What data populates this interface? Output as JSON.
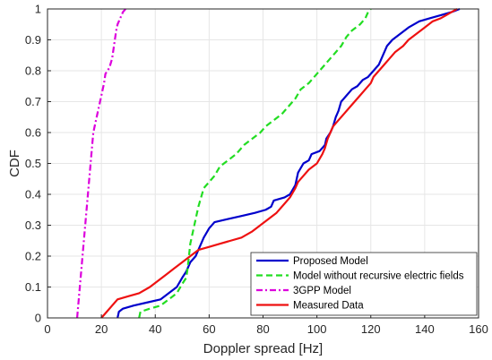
{
  "chart_data": {
    "type": "line",
    "title": "",
    "xlabel": "Doppler spread [Hz]",
    "ylabel": "CDF",
    "xlim": [
      0,
      160
    ],
    "ylim": [
      0,
      1
    ],
    "x_ticks": [
      "0",
      "20",
      "40",
      "60",
      "80",
      "100",
      "120",
      "140",
      "160"
    ],
    "y_ticks": [
      "0",
      "0.1",
      "0.2",
      "0.3",
      "0.4",
      "0.5",
      "0.6",
      "0.7",
      "0.8",
      "0.9",
      "1"
    ],
    "grid": true,
    "legend_position": "bottom-right",
    "series": [
      {
        "name": "Proposed Model",
        "color": "#0000cc",
        "style": "solid",
        "points": [
          [
            26,
            0
          ],
          [
            26.5,
            0.02
          ],
          [
            28,
            0.03
          ],
          [
            32,
            0.04
          ],
          [
            37,
            0.05
          ],
          [
            42,
            0.06
          ],
          [
            45,
            0.08
          ],
          [
            48,
            0.1
          ],
          [
            50,
            0.13
          ],
          [
            51.5,
            0.15
          ],
          [
            53,
            0.18
          ],
          [
            55,
            0.2
          ],
          [
            56,
            0.22
          ],
          [
            57,
            0.24
          ],
          [
            58,
            0.26
          ],
          [
            60,
            0.29
          ],
          [
            62,
            0.31
          ],
          [
            67,
            0.32
          ],
          [
            72,
            0.33
          ],
          [
            77,
            0.34
          ],
          [
            81,
            0.35
          ],
          [
            83,
            0.36
          ],
          [
            84,
            0.38
          ],
          [
            88,
            0.39
          ],
          [
            90,
            0.4
          ],
          [
            92,
            0.43
          ],
          [
            93,
            0.47
          ],
          [
            95,
            0.5
          ],
          [
            97,
            0.51
          ],
          [
            98,
            0.53
          ],
          [
            101,
            0.54
          ],
          [
            103,
            0.56
          ],
          [
            103.5,
            0.58
          ],
          [
            105,
            0.6
          ],
          [
            106,
            0.62
          ],
          [
            107,
            0.65
          ],
          [
            108,
            0.67
          ],
          [
            109,
            0.7
          ],
          [
            111,
            0.72
          ],
          [
            113,
            0.74
          ],
          [
            115,
            0.75
          ],
          [
            117,
            0.77
          ],
          [
            119,
            0.78
          ],
          [
            121,
            0.8
          ],
          [
            123,
            0.82
          ],
          [
            124,
            0.84
          ],
          [
            125,
            0.86
          ],
          [
            126,
            0.88
          ],
          [
            128,
            0.9
          ],
          [
            131,
            0.92
          ],
          [
            134,
            0.94
          ],
          [
            138,
            0.96
          ],
          [
            142,
            0.97
          ],
          [
            146,
            0.98
          ],
          [
            150,
            0.99
          ],
          [
            153,
            1.0
          ]
        ]
      },
      {
        "name": "Model without recursive electric fields",
        "color": "#22dd22",
        "style": "dashed",
        "points": [
          [
            34,
            0
          ],
          [
            34.5,
            0.02
          ],
          [
            38,
            0.03
          ],
          [
            42,
            0.04
          ],
          [
            45,
            0.06
          ],
          [
            48,
            0.08
          ],
          [
            50,
            0.11
          ],
          [
            51.5,
            0.13
          ],
          [
            52,
            0.16
          ],
          [
            52.5,
            0.2
          ],
          [
            53,
            0.24
          ],
          [
            54,
            0.28
          ],
          [
            55,
            0.32
          ],
          [
            56,
            0.36
          ],
          [
            57,
            0.39
          ],
          [
            58,
            0.42
          ],
          [
            60,
            0.44
          ],
          [
            62,
            0.46
          ],
          [
            64,
            0.49
          ],
          [
            67,
            0.51
          ],
          [
            70,
            0.53
          ],
          [
            73,
            0.56
          ],
          [
            76,
            0.58
          ],
          [
            79,
            0.6
          ],
          [
            81,
            0.62
          ],
          [
            84,
            0.64
          ],
          [
            87,
            0.66
          ],
          [
            89,
            0.68
          ],
          [
            92,
            0.71
          ],
          [
            94,
            0.74
          ],
          [
            97,
            0.76
          ],
          [
            100,
            0.79
          ],
          [
            103,
            0.82
          ],
          [
            106,
            0.85
          ],
          [
            109,
            0.88
          ],
          [
            111,
            0.91
          ],
          [
            113,
            0.93
          ],
          [
            116,
            0.95
          ],
          [
            118,
            0.97
          ],
          [
            119,
            0.99
          ],
          [
            120,
            1.0
          ]
        ]
      },
      {
        "name": "3GPP Model",
        "color": "#dd00dd",
        "style": "dashdot",
        "points": [
          [
            11,
            0
          ],
          [
            11.5,
            0.05
          ],
          [
            12,
            0.1
          ],
          [
            12.5,
            0.15
          ],
          [
            13,
            0.2
          ],
          [
            13.5,
            0.25
          ],
          [
            14,
            0.3
          ],
          [
            14.5,
            0.35
          ],
          [
            15,
            0.4
          ],
          [
            15.5,
            0.45
          ],
          [
            16,
            0.5
          ],
          [
            16.5,
            0.55
          ],
          [
            17,
            0.6
          ],
          [
            18,
            0.64
          ],
          [
            19,
            0.68
          ],
          [
            20,
            0.72
          ],
          [
            21,
            0.76
          ],
          [
            21.5,
            0.79
          ],
          [
            23,
            0.81
          ],
          [
            24,
            0.84
          ],
          [
            24.5,
            0.87
          ],
          [
            25,
            0.9
          ],
          [
            25.5,
            0.93
          ],
          [
            26,
            0.95
          ],
          [
            27,
            0.97
          ],
          [
            28,
            0.99
          ],
          [
            29,
            1.0
          ]
        ]
      },
      {
        "name": "Measured Data",
        "color": "#ee1111",
        "style": "solid",
        "points": [
          [
            20,
            0
          ],
          [
            22,
            0.02
          ],
          [
            24,
            0.04
          ],
          [
            26,
            0.06
          ],
          [
            30,
            0.07
          ],
          [
            34,
            0.08
          ],
          [
            38,
            0.1
          ],
          [
            41,
            0.12
          ],
          [
            44,
            0.14
          ],
          [
            47,
            0.16
          ],
          [
            50,
            0.18
          ],
          [
            53,
            0.2
          ],
          [
            56,
            0.22
          ],
          [
            60,
            0.23
          ],
          [
            64,
            0.24
          ],
          [
            68,
            0.25
          ],
          [
            72,
            0.26
          ],
          [
            76,
            0.28
          ],
          [
            79,
            0.3
          ],
          [
            82,
            0.32
          ],
          [
            85,
            0.34
          ],
          [
            88,
            0.37
          ],
          [
            90,
            0.39
          ],
          [
            92,
            0.42
          ],
          [
            93,
            0.44
          ],
          [
            95,
            0.46
          ],
          [
            97,
            0.48
          ],
          [
            100,
            0.5
          ],
          [
            102,
            0.53
          ],
          [
            103,
            0.55
          ],
          [
            104,
            0.58
          ],
          [
            105,
            0.6
          ],
          [
            106,
            0.62
          ],
          [
            108,
            0.64
          ],
          [
            110,
            0.66
          ],
          [
            112,
            0.68
          ],
          [
            114,
            0.7
          ],
          [
            116,
            0.72
          ],
          [
            118,
            0.74
          ],
          [
            120,
            0.76
          ],
          [
            121,
            0.78
          ],
          [
            123,
            0.8
          ],
          [
            125,
            0.82
          ],
          [
            127,
            0.84
          ],
          [
            129,
            0.86
          ],
          [
            132,
            0.88
          ],
          [
            134,
            0.9
          ],
          [
            137,
            0.92
          ],
          [
            140,
            0.94
          ],
          [
            143,
            0.96
          ],
          [
            146,
            0.97
          ],
          [
            148,
            0.98
          ],
          [
            150,
            0.99
          ],
          [
            152,
            1.0
          ]
        ]
      }
    ]
  }
}
